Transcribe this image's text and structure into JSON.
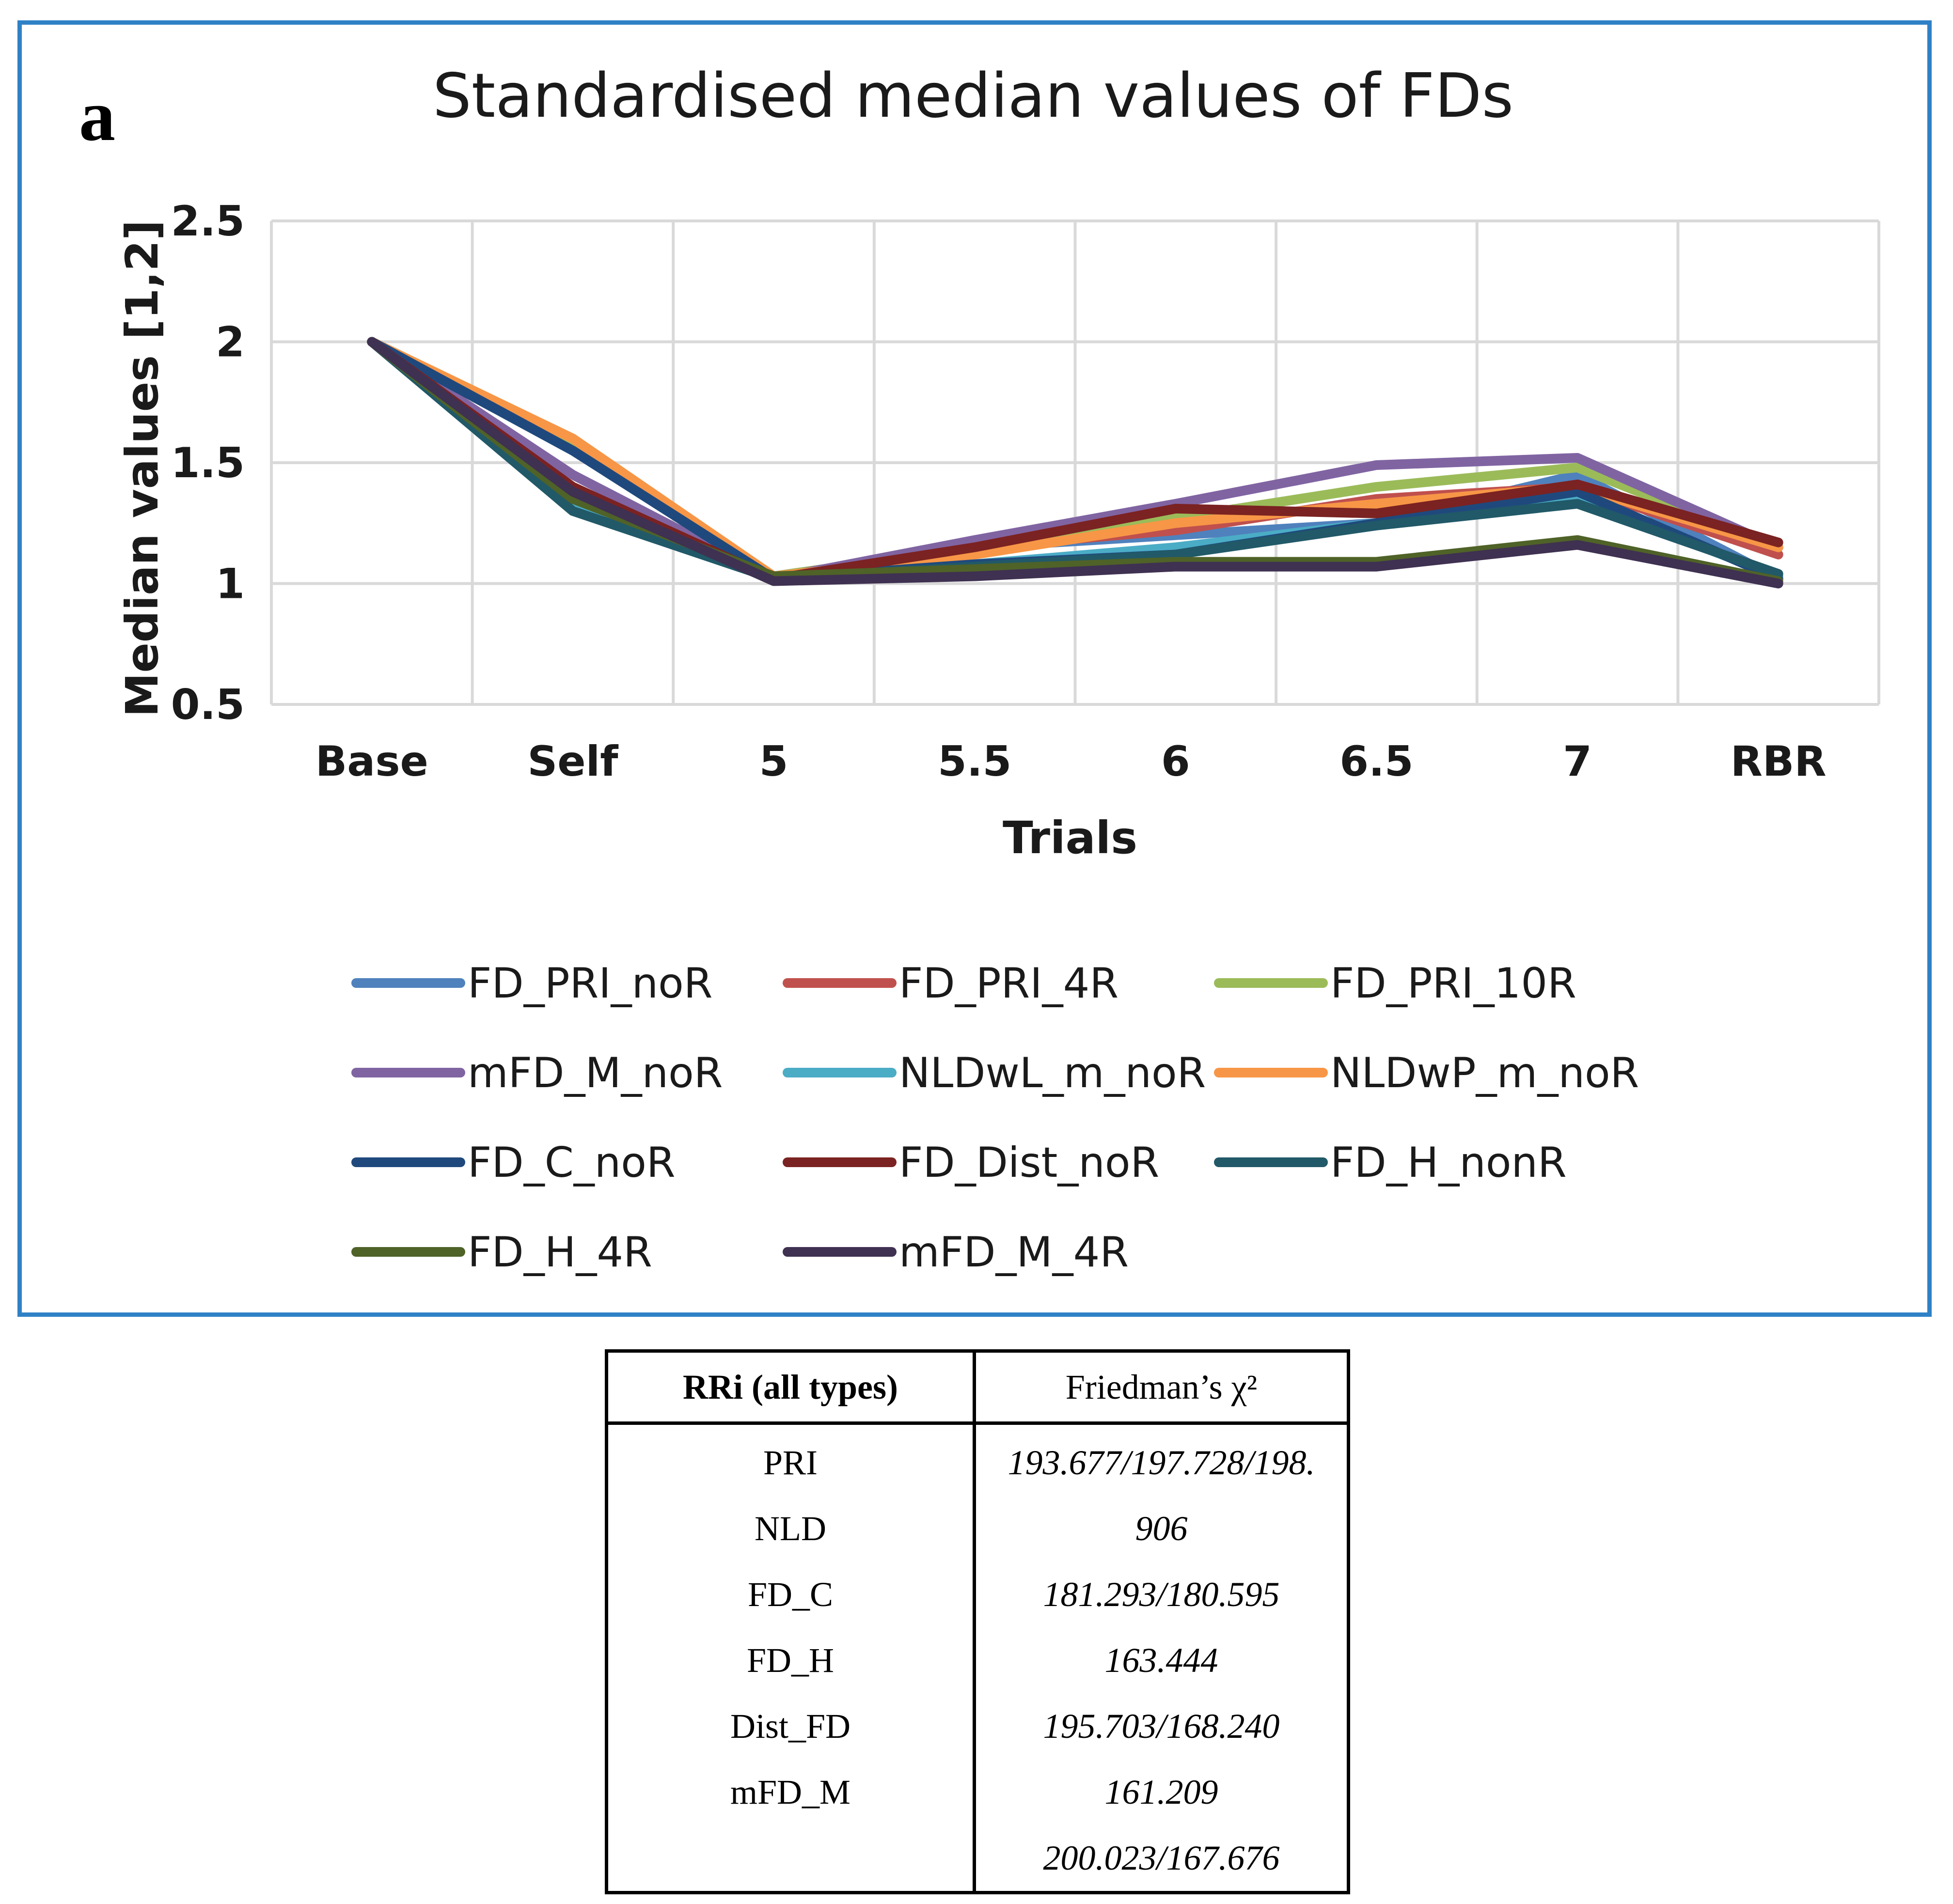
{
  "panel_letter": "a",
  "chart_data": {
    "type": "line",
    "title": "Standardised median values of FDs",
    "xlabel": "Trials",
    "ylabel": "Median values [1,2]",
    "categories": [
      "Base",
      "Self",
      "5",
      "5.5",
      "6",
      "6.5",
      "7",
      "RBR"
    ],
    "ylim": [
      0.5,
      2.5
    ],
    "yticks": [
      0.5,
      1,
      1.5,
      2,
      2.5
    ],
    "ytick_labels": [
      "0.5",
      "1",
      "1.5",
      "2",
      "2.5"
    ],
    "grid": true,
    "legend_position": "bottom",
    "series": [
      {
        "name": "FD_PRI_noR",
        "color": "#4f81bd",
        "values": [
          2.0,
          1.55,
          1.03,
          1.15,
          1.2,
          1.25,
          1.45,
          1.02
        ]
      },
      {
        "name": "FD_PRI_4R",
        "color": "#c0504d",
        "values": [
          2.0,
          1.58,
          1.03,
          1.15,
          1.22,
          1.35,
          1.4,
          1.12
        ]
      },
      {
        "name": "FD_PRI_10R",
        "color": "#9bbb59",
        "values": [
          2.0,
          1.58,
          1.03,
          1.15,
          1.27,
          1.4,
          1.48,
          1.15
        ]
      },
      {
        "name": "mFD_M_noR",
        "color": "#8064a2",
        "values": [
          2.0,
          1.45,
          1.02,
          1.18,
          1.33,
          1.49,
          1.52,
          1.15
        ]
      },
      {
        "name": "NLDwL_m_noR",
        "color": "#4bacc6",
        "values": [
          2.0,
          1.32,
          1.02,
          1.08,
          1.15,
          1.25,
          1.35,
          1.03
        ]
      },
      {
        "name": "NLDwP_m_noR",
        "color": "#f79646",
        "values": [
          2.0,
          1.6,
          1.03,
          1.12,
          1.25,
          1.33,
          1.4,
          1.15
        ]
      },
      {
        "name": "FD_C_noR",
        "color": "#1f497d",
        "values": [
          2.0,
          1.55,
          1.02,
          1.08,
          1.12,
          1.25,
          1.38,
          1.02
        ]
      },
      {
        "name": "FD_Dist_noR",
        "color": "#7b2222",
        "values": [
          2.0,
          1.4,
          1.02,
          1.15,
          1.31,
          1.29,
          1.41,
          1.17
        ]
      },
      {
        "name": "FD_H_nonR",
        "color": "#215968",
        "values": [
          2.0,
          1.3,
          1.02,
          1.07,
          1.12,
          1.24,
          1.33,
          1.04
        ]
      },
      {
        "name": "FD_H_4R",
        "color": "#4f6228",
        "values": [
          2.0,
          1.35,
          1.03,
          1.06,
          1.09,
          1.09,
          1.18,
          1.01
        ]
      },
      {
        "name": "mFD_M_4R",
        "color": "#3f3151",
        "values": [
          2.0,
          1.38,
          1.01,
          1.03,
          1.07,
          1.07,
          1.16,
          1.0
        ]
      }
    ]
  },
  "table": {
    "header": {
      "left": "RRi (all types)",
      "right": "Friedman’s χ²"
    },
    "rows": [
      {
        "left": "PRI",
        "right": "193.677/197.728/198."
      },
      {
        "left": "NLD",
        "right": "906"
      },
      {
        "left": "FD_C",
        "right": "181.293/180.595"
      },
      {
        "left": "FD_H",
        "right": "163.444"
      },
      {
        "left": "Dist_FD",
        "right": "195.703/168.240"
      },
      {
        "left": "mFD_M",
        "right": "161.209"
      },
      {
        "left": "",
        "right": "200.023/167.676"
      }
    ]
  }
}
